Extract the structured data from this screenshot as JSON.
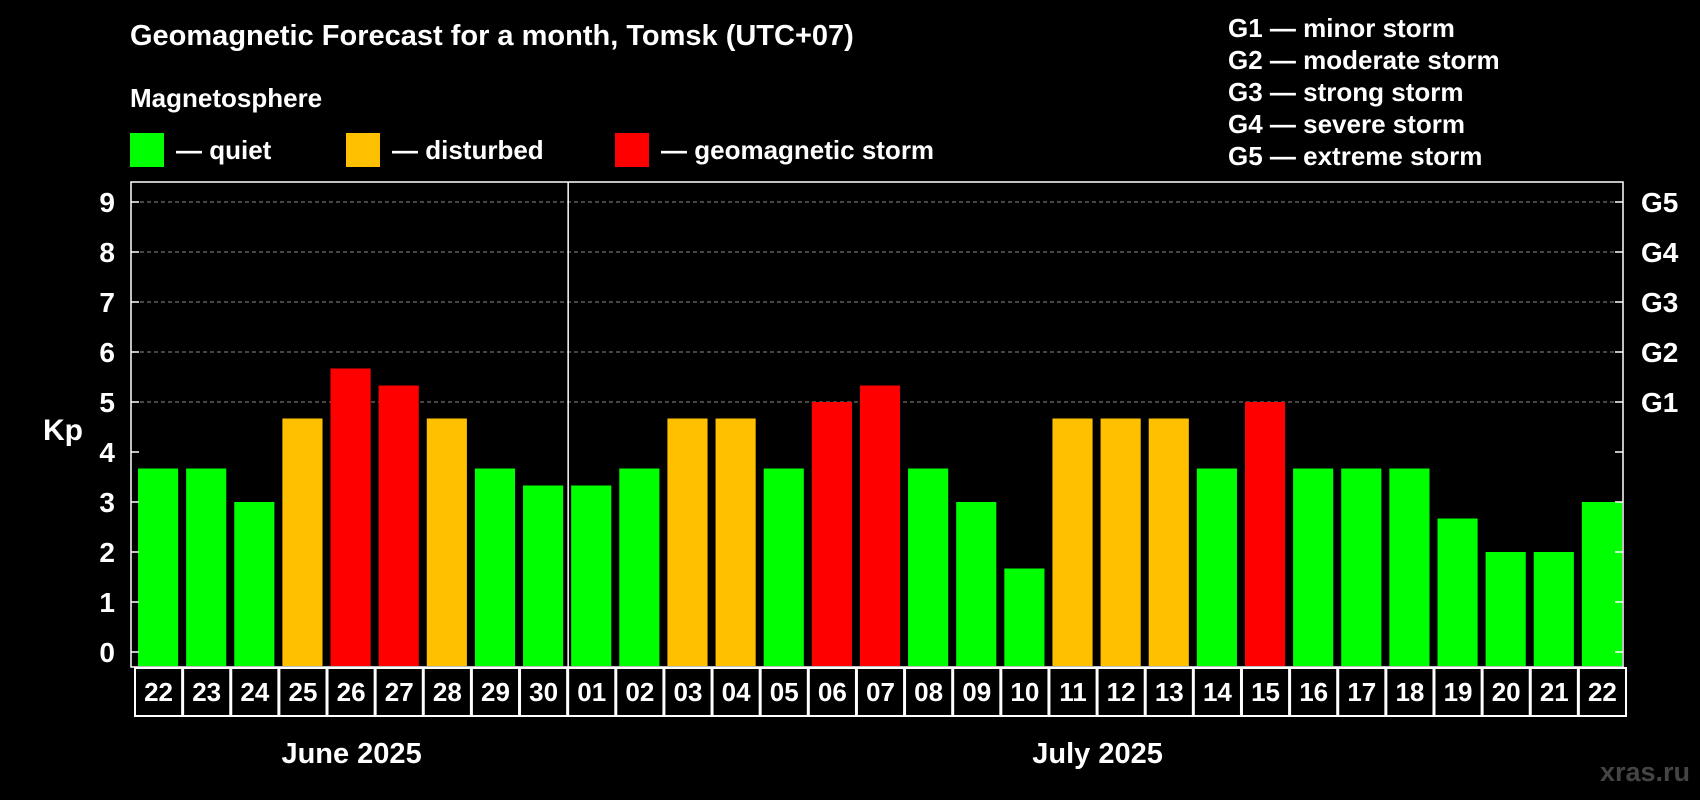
{
  "chart_data": {
    "type": "bar",
    "title": "Geomagnetic Forecast for a month, Tomsk (UTC+07)",
    "subtitle": "Magnetosphere",
    "ylabel": "Kp",
    "ylim": [
      0,
      9
    ],
    "yticks": [
      "0",
      "1",
      "2",
      "3",
      "4",
      "5",
      "6",
      "7",
      "8",
      "9"
    ],
    "right_axis": [
      {
        "value": 5,
        "label": "G1"
      },
      {
        "value": 6,
        "label": "G2"
      },
      {
        "value": 7,
        "label": "G3"
      },
      {
        "value": 8,
        "label": "G4"
      },
      {
        "value": 9,
        "label": "G5"
      }
    ],
    "categories": [
      "22",
      "23",
      "24",
      "25",
      "26",
      "27",
      "28",
      "29",
      "30",
      "01",
      "02",
      "03",
      "04",
      "05",
      "06",
      "07",
      "08",
      "09",
      "10",
      "11",
      "12",
      "13",
      "14",
      "15",
      "16",
      "17",
      "18",
      "19",
      "20",
      "21",
      "22"
    ],
    "values": [
      3.67,
      3.67,
      3.0,
      4.67,
      5.67,
      5.33,
      4.67,
      3.67,
      3.33,
      3.33,
      3.67,
      4.67,
      4.67,
      3.67,
      5.0,
      5.33,
      3.67,
      3.0,
      1.67,
      4.67,
      4.67,
      4.67,
      3.67,
      5.0,
      3.67,
      3.67,
      3.67,
      2.67,
      2.0,
      2.0,
      3.0
    ],
    "status": [
      "quiet",
      "quiet",
      "quiet",
      "disturbed",
      "storm",
      "storm",
      "disturbed",
      "quiet",
      "quiet",
      "quiet",
      "quiet",
      "disturbed",
      "disturbed",
      "quiet",
      "storm",
      "storm",
      "quiet",
      "quiet",
      "quiet",
      "disturbed",
      "disturbed",
      "disturbed",
      "quiet",
      "storm",
      "quiet",
      "quiet",
      "quiet",
      "quiet",
      "quiet",
      "quiet",
      "quiet"
    ],
    "months": [
      {
        "label": "June 2025",
        "count": 9
      },
      {
        "label": "July 2025",
        "count": 22
      }
    ],
    "grid": true
  },
  "legend": [
    {
      "key": "quiet",
      "label": "— quiet",
      "color": "#00ff00"
    },
    {
      "key": "disturbed",
      "label": "— disturbed",
      "color": "#ffc000"
    },
    {
      "key": "storm",
      "label": "— geomagnetic storm",
      "color": "#ff0000"
    }
  ],
  "g_scale": [
    "G1 — minor storm",
    "G2 — moderate storm",
    "G3 — strong storm",
    "G4 — severe storm",
    "G5 — extreme storm"
  ],
  "watermark": "xras.ru"
}
